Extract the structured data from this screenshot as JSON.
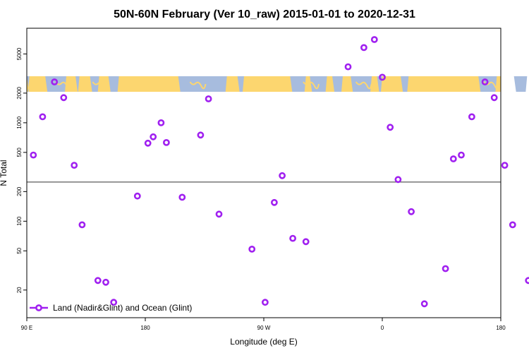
{
  "chart_data": {
    "type": "scatter",
    "title": "50N-60N February (Ver 10_raw)   2015-01-01 to 2020-12-31",
    "xlabel": "Longitude (deg E)",
    "ylabel": "N Total",
    "xlim": [
      90,
      450
    ],
    "ylim_log10": [
      1.02,
      3.96
    ],
    "y_scale": "log",
    "x_ticks": [
      {
        "value": 90,
        "label": "90 E"
      },
      {
        "value": 180,
        "label": "180"
      },
      {
        "value": 270,
        "label": "90 W"
      },
      {
        "value": 360,
        "label": "0"
      },
      {
        "value": 450,
        "label": "180"
      }
    ],
    "x_ticks_bottom": [
      {
        "value": 90,
        "label": "90 E"
      },
      {
        "value": 180,
        "label": "180"
      },
      {
        "value": 270,
        "label": "90 W"
      },
      {
        "value": 360,
        "label": "0"
      },
      {
        "value": 450,
        "label": "180"
      },
      {
        "value": 540,
        "label": "90 E"
      },
      {
        "value": 630,
        "label": "180"
      }
    ],
    "y_ticks": [
      {
        "value": 20,
        "label": "20"
      },
      {
        "value": 50,
        "label": "50"
      },
      {
        "value": 100,
        "label": "100"
      },
      {
        "value": 200,
        "label": "200"
      },
      {
        "value": 500,
        "label": "500"
      },
      {
        "value": 1000,
        "label": "1000"
      },
      {
        "value": 2000,
        "label": "2000"
      },
      {
        "value": 5000,
        "label": "5000"
      }
    ],
    "reference_line": 250,
    "series": [
      {
        "name": "Land (Nadir&Glint) and Ocean (Glint)",
        "color": "#a020f0",
        "points": [
          [
            95,
            470
          ],
          [
            102,
            1150
          ],
          [
            111,
            2600
          ],
          [
            118,
            1800
          ],
          [
            126,
            370
          ],
          [
            132,
            92
          ],
          [
            144,
            25
          ],
          [
            150,
            24
          ],
          [
            156,
            15
          ],
          [
            174,
            180
          ],
          [
            182,
            620
          ],
          [
            186,
            720
          ],
          [
            192,
            1000
          ],
          [
            196,
            630
          ],
          [
            208,
            175
          ],
          [
            222,
            750
          ],
          [
            228,
            1750
          ],
          [
            236,
            118
          ],
          [
            261,
            52
          ],
          [
            271,
            15
          ],
          [
            278,
            155
          ],
          [
            284,
            290
          ],
          [
            292,
            67
          ],
          [
            302,
            62
          ],
          [
            334,
            3700
          ],
          [
            346,
            5800
          ],
          [
            354,
            7000
          ],
          [
            360,
            2900
          ],
          [
            366,
            900
          ],
          [
            372,
            265
          ],
          [
            382,
            125
          ],
          [
            392,
            14.5
          ],
          [
            408,
            33
          ],
          [
            414,
            430
          ],
          [
            420,
            470
          ],
          [
            428,
            1150
          ],
          [
            438,
            2600
          ],
          [
            445,
            1800
          ],
          [
            453,
            370
          ],
          [
            459,
            92
          ],
          [
            471,
            25
          ],
          [
            477,
            24
          ],
          [
            483,
            15
          ]
        ]
      }
    ],
    "legend": {
      "position": "bottom-left",
      "entries": [
        "Land (Nadir&Glint) and Ocean (Glint)"
      ]
    },
    "map_colors": {
      "ocean": "#a7bcde",
      "land": "#fcd66f"
    },
    "axis_color": "#000000",
    "ref_line_color": "#333333"
  }
}
